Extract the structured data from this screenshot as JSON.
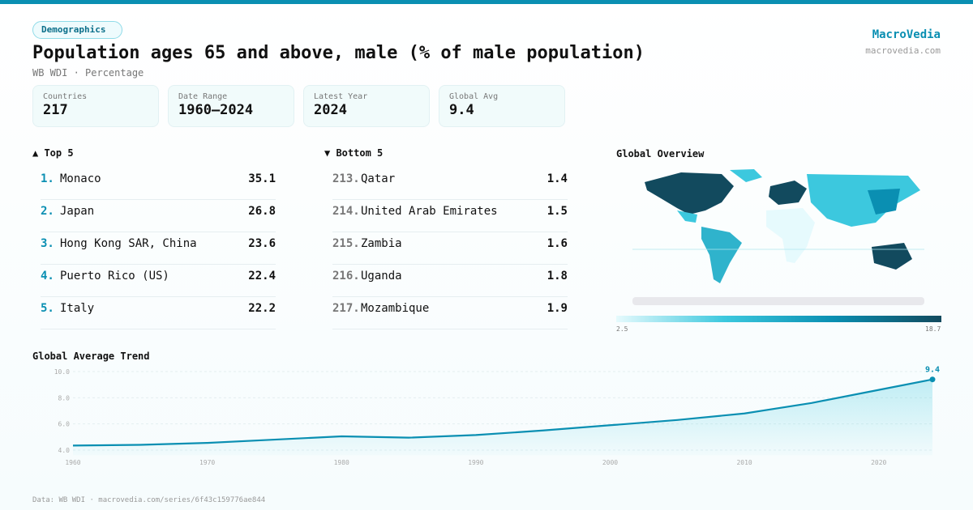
{
  "badge": "Demographics",
  "title": "Population ages 65 and above, male (% of male population)",
  "subtitle": "WB WDI · Percentage",
  "brand": {
    "name": "MacroVedia",
    "url": "macrovedia.com"
  },
  "stats": [
    {
      "label": "Countries",
      "value": "217"
    },
    {
      "label": "Date Range",
      "value": "1960–2024"
    },
    {
      "label": "Latest Year",
      "value": "2024"
    },
    {
      "label": "Global Avg",
      "value": "9.4"
    }
  ],
  "top5": {
    "title": "▲ Top 5",
    "items": [
      {
        "rank": "1.",
        "name": "Monaco",
        "value": "35.1"
      },
      {
        "rank": "2.",
        "name": "Japan",
        "value": "26.8"
      },
      {
        "rank": "3.",
        "name": "Hong Kong SAR, China",
        "value": "23.6"
      },
      {
        "rank": "4.",
        "name": "Puerto Rico (US)",
        "value": "22.4"
      },
      {
        "rank": "5.",
        "name": "Italy",
        "value": "22.2"
      }
    ]
  },
  "bottom5": {
    "title": "▼ Bottom 5",
    "items": [
      {
        "rank": "213.",
        "name": "Qatar",
        "value": "1.4"
      },
      {
        "rank": "214.",
        "name": "United Arab Emirates",
        "value": "1.5"
      },
      {
        "rank": "215.",
        "name": "Zambia",
        "value": "1.6"
      },
      {
        "rank": "216.",
        "name": "Uganda",
        "value": "1.8"
      },
      {
        "rank": "217.",
        "name": "Mozambique",
        "value": "1.9"
      }
    ]
  },
  "map": {
    "title": "Global Overview",
    "scale_min": "2.5",
    "scale_max": "18.7",
    "colors": [
      "#e6fafd",
      "#3cc8de",
      "#0a8fb2",
      "#124a5e"
    ]
  },
  "chart_data": {
    "type": "area",
    "title": "Global Average Trend",
    "x": [
      1960,
      1965,
      1970,
      1975,
      1980,
      1985,
      1990,
      1995,
      2000,
      2005,
      2010,
      2015,
      2020,
      2024
    ],
    "values": [
      4.35,
      4.4,
      4.55,
      4.8,
      5.05,
      4.95,
      5.15,
      5.5,
      5.9,
      6.3,
      6.8,
      7.6,
      8.6,
      9.4
    ],
    "ylim": [
      4,
      10
    ],
    "yticks": [
      "4.0",
      "6.0",
      "8.0",
      "10.0"
    ],
    "xticks": [
      "1960",
      "1970",
      "1980",
      "1990",
      "2000",
      "2010",
      "2020"
    ],
    "last_label": "9.4",
    "color": "#0a8fb2",
    "grid": true
  },
  "footer": "Data: WB WDI · macrovedia.com/series/6f43c159776ae844"
}
